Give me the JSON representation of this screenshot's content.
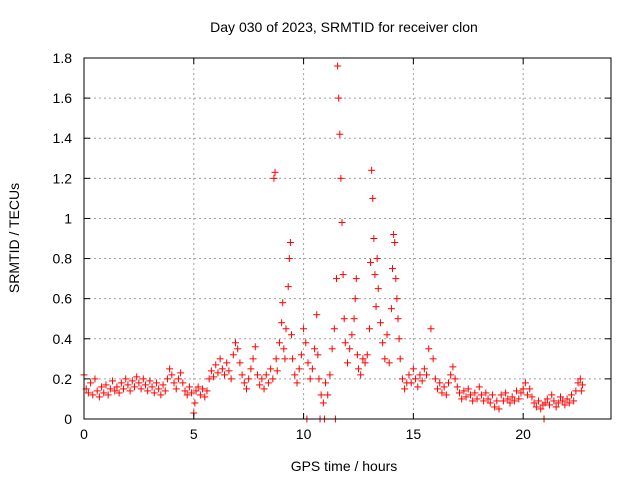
{
  "chart_data": {
    "type": "scatter",
    "title": "Day 030 of 2023, SRMTID for receiver clon",
    "xlabel": "GPS time / hours",
    "ylabel": "SRMTID / TECUs",
    "xlim": [
      0,
      24
    ],
    "ylim": [
      0,
      1.8
    ],
    "xticks": [
      0,
      5,
      10,
      15,
      20
    ],
    "xtick_labels": [
      "0",
      "5",
      "10",
      "15",
      "20"
    ],
    "yticks": [
      0,
      0.2,
      0.4,
      0.6,
      0.8,
      1.0,
      1.2,
      1.4,
      1.6,
      1.8
    ],
    "ytick_labels": [
      "0",
      "0.2",
      "0.4",
      "0.6",
      "0.8",
      "1",
      "1.2",
      "1.4",
      "1.6",
      "1.8"
    ],
    "grid": true,
    "marker": "+",
    "color": "#ff0000",
    "series": [
      {
        "name": "SRMTID",
        "points": [
          [
            0.0,
            0.22
          ],
          [
            0.1,
            0.15
          ],
          [
            0.2,
            0.13
          ],
          [
            0.3,
            0.18
          ],
          [
            0.4,
            0.12
          ],
          [
            0.5,
            0.2
          ],
          [
            0.6,
            0.14
          ],
          [
            0.7,
            0.11
          ],
          [
            0.8,
            0.16
          ],
          [
            0.9,
            0.13
          ],
          [
            1.0,
            0.17
          ],
          [
            1.1,
            0.12
          ],
          [
            1.2,
            0.15
          ],
          [
            1.3,
            0.19
          ],
          [
            1.4,
            0.14
          ],
          [
            1.5,
            0.16
          ],
          [
            1.6,
            0.13
          ],
          [
            1.7,
            0.18
          ],
          [
            1.8,
            0.15
          ],
          [
            1.9,
            0.2
          ],
          [
            2.0,
            0.17
          ],
          [
            2.1,
            0.14
          ],
          [
            2.2,
            0.19
          ],
          [
            2.3,
            0.16
          ],
          [
            2.4,
            0.21
          ],
          [
            2.5,
            0.18
          ],
          [
            2.6,
            0.15
          ],
          [
            2.7,
            0.2
          ],
          [
            2.8,
            0.17
          ],
          [
            2.9,
            0.14
          ],
          [
            3.0,
            0.19
          ],
          [
            3.1,
            0.16
          ],
          [
            3.2,
            0.13
          ],
          [
            3.3,
            0.18
          ],
          [
            3.4,
            0.15
          ],
          [
            3.5,
            0.12
          ],
          [
            3.6,
            0.17
          ],
          [
            3.7,
            0.14
          ],
          [
            3.8,
            0.2
          ],
          [
            3.9,
            0.25
          ],
          [
            4.0,
            0.22
          ],
          [
            4.1,
            0.18
          ],
          [
            4.2,
            0.15
          ],
          [
            4.3,
            0.2
          ],
          [
            4.4,
            0.23
          ],
          [
            4.5,
            0.18
          ],
          [
            4.6,
            0.14
          ],
          [
            4.7,
            0.12
          ],
          [
            4.8,
            0.16
          ],
          [
            4.9,
            0.13
          ],
          [
            5.0,
            0.03
          ],
          [
            5.05,
            0.08
          ],
          [
            5.1,
            0.14
          ],
          [
            5.2,
            0.16
          ],
          [
            5.3,
            0.12
          ],
          [
            5.4,
            0.15
          ],
          [
            5.5,
            0.11
          ],
          [
            5.6,
            0.14
          ],
          [
            5.7,
            0.2
          ],
          [
            5.8,
            0.24
          ],
          [
            5.9,
            0.21
          ],
          [
            6.0,
            0.27
          ],
          [
            6.1,
            0.23
          ],
          [
            6.2,
            0.3
          ],
          [
            6.3,
            0.25
          ],
          [
            6.4,
            0.22
          ],
          [
            6.5,
            0.28
          ],
          [
            6.6,
            0.24
          ],
          [
            6.7,
            0.2
          ],
          [
            6.8,
            0.32
          ],
          [
            6.9,
            0.38
          ],
          [
            7.0,
            0.35
          ],
          [
            7.1,
            0.28
          ],
          [
            7.2,
            0.22
          ],
          [
            7.3,
            0.18
          ],
          [
            7.4,
            0.15
          ],
          [
            7.5,
            0.2
          ],
          [
            7.6,
            0.25
          ],
          [
            7.7,
            0.3
          ],
          [
            7.8,
            0.36
          ],
          [
            7.9,
            0.22
          ],
          [
            8.0,
            0.17
          ],
          [
            8.1,
            0.2
          ],
          [
            8.2,
            0.15
          ],
          [
            8.3,
            0.22
          ],
          [
            8.4,
            0.18
          ],
          [
            8.5,
            0.25
          ],
          [
            8.6,
            0.2
          ],
          [
            8.65,
            1.2
          ],
          [
            8.7,
            1.23
          ],
          [
            8.75,
            0.3
          ],
          [
            8.8,
            0.24
          ],
          [
            8.9,
            0.38
          ],
          [
            9.0,
            0.48
          ],
          [
            9.05,
            0.58
          ],
          [
            9.1,
            0.35
          ],
          [
            9.15,
            0.3
          ],
          [
            9.2,
            0.45
          ],
          [
            9.3,
            0.66
          ],
          [
            9.35,
            0.8
          ],
          [
            9.4,
            0.88
          ],
          [
            9.45,
            0.42
          ],
          [
            9.5,
            0.3
          ],
          [
            9.6,
            0.22
          ],
          [
            9.7,
            0.18
          ],
          [
            9.8,
            0.25
          ],
          [
            9.9,
            0.32
          ],
          [
            10.0,
            0.45
          ],
          [
            10.1,
            0.38
          ],
          [
            10.15,
            0.0
          ],
          [
            10.2,
            0.28
          ],
          [
            10.3,
            0.2
          ],
          [
            10.4,
            0.25
          ],
          [
            10.5,
            0.35
          ],
          [
            10.6,
            0.52
          ],
          [
            10.65,
            0.32
          ],
          [
            10.7,
            0.2
          ],
          [
            10.75,
            0.0
          ],
          [
            10.8,
            0.12
          ],
          [
            10.9,
            0.08
          ],
          [
            10.95,
            0.0
          ],
          [
            11.0,
            0.18
          ],
          [
            11.1,
            0.12
          ],
          [
            11.2,
            0.22
          ],
          [
            11.3,
            0.35
          ],
          [
            11.4,
            0.45
          ],
          [
            11.45,
            0.0
          ],
          [
            11.5,
            0.7
          ],
          [
            11.55,
            1.76
          ],
          [
            11.6,
            1.6
          ],
          [
            11.65,
            1.42
          ],
          [
            11.7,
            1.2
          ],
          [
            11.75,
            0.98
          ],
          [
            11.8,
            0.72
          ],
          [
            11.85,
            0.5
          ],
          [
            11.9,
            0.38
          ],
          [
            12.0,
            0.28
          ],
          [
            12.1,
            0.35
          ],
          [
            12.2,
            0.42
          ],
          [
            12.3,
            0.5
          ],
          [
            12.35,
            0.6
          ],
          [
            12.4,
            0.7
          ],
          [
            12.45,
            0.32
          ],
          [
            12.5,
            0.25
          ],
          [
            12.6,
            0.22
          ],
          [
            12.7,
            0.3
          ],
          [
            12.8,
            0.28
          ],
          [
            12.9,
            0.32
          ],
          [
            13.0,
            0.45
          ],
          [
            13.05,
            0.78
          ],
          [
            13.1,
            1.24
          ],
          [
            13.15,
            1.1
          ],
          [
            13.2,
            0.9
          ],
          [
            13.25,
            0.72
          ],
          [
            13.3,
            0.56
          ],
          [
            13.35,
            0.8
          ],
          [
            13.4,
            0.65
          ],
          [
            13.5,
            0.48
          ],
          [
            13.6,
            0.38
          ],
          [
            13.7,
            0.3
          ],
          [
            13.8,
            0.42
          ],
          [
            13.9,
            0.28
          ],
          [
            14.0,
            0.55
          ],
          [
            14.05,
            0.75
          ],
          [
            14.1,
            0.92
          ],
          [
            14.15,
            0.88
          ],
          [
            14.2,
            0.7
          ],
          [
            14.25,
            0.6
          ],
          [
            14.3,
            0.5
          ],
          [
            14.35,
            0.4
          ],
          [
            14.4,
            0.3
          ],
          [
            14.5,
            0.2
          ],
          [
            14.6,
            0.15
          ],
          [
            14.7,
            0.18
          ],
          [
            14.8,
            0.22
          ],
          [
            14.9,
            0.18
          ],
          [
            15.0,
            0.25
          ],
          [
            15.1,
            0.2
          ],
          [
            15.2,
            0.16
          ],
          [
            15.3,
            0.22
          ],
          [
            15.4,
            0.19
          ],
          [
            15.5,
            0.25
          ],
          [
            15.6,
            0.22
          ],
          [
            15.7,
            0.35
          ],
          [
            15.8,
            0.45
          ],
          [
            15.9,
            0.3
          ],
          [
            16.0,
            0.2
          ],
          [
            16.1,
            0.15
          ],
          [
            16.2,
            0.18
          ],
          [
            16.3,
            0.13
          ],
          [
            16.4,
            0.16
          ],
          [
            16.5,
            0.12
          ],
          [
            16.6,
            0.18
          ],
          [
            16.7,
            0.22
          ],
          [
            16.8,
            0.26
          ],
          [
            16.9,
            0.2
          ],
          [
            17.0,
            0.16
          ],
          [
            17.1,
            0.13
          ],
          [
            17.2,
            0.1
          ],
          [
            17.3,
            0.14
          ],
          [
            17.4,
            0.11
          ],
          [
            17.5,
            0.15
          ],
          [
            17.6,
            0.12
          ],
          [
            17.7,
            0.09
          ],
          [
            17.8,
            0.13
          ],
          [
            17.9,
            0.1
          ],
          [
            18.0,
            0.16
          ],
          [
            18.1,
            0.12
          ],
          [
            18.2,
            0.09
          ],
          [
            18.3,
            0.13
          ],
          [
            18.4,
            0.1
          ],
          [
            18.5,
            0.08
          ],
          [
            18.6,
            0.12
          ],
          [
            18.7,
            0.06
          ],
          [
            18.8,
            0.09
          ],
          [
            18.9,
            0.05
          ],
          [
            19.0,
            0.12
          ],
          [
            19.1,
            0.09
          ],
          [
            19.2,
            0.13
          ],
          [
            19.3,
            0.1
          ],
          [
            19.4,
            0.08
          ],
          [
            19.5,
            0.11
          ],
          [
            19.6,
            0.09
          ],
          [
            19.7,
            0.14
          ],
          [
            19.8,
            0.1
          ],
          [
            19.9,
            0.13
          ],
          [
            20.0,
            0.15
          ],
          [
            20.1,
            0.18
          ],
          [
            20.2,
            0.12
          ],
          [
            20.3,
            0.15
          ],
          [
            20.4,
            0.11
          ],
          [
            20.5,
            0.08
          ],
          [
            20.6,
            0.06
          ],
          [
            20.7,
            0.09
          ],
          [
            20.8,
            0.05
          ],
          [
            20.9,
            0.07
          ],
          [
            20.95,
            0.0
          ],
          [
            21.0,
            0.08
          ],
          [
            21.1,
            0.1
          ],
          [
            21.2,
            0.07
          ],
          [
            21.3,
            0.12
          ],
          [
            21.4,
            0.09
          ],
          [
            21.5,
            0.06
          ],
          [
            21.6,
            0.08
          ],
          [
            21.7,
            0.11
          ],
          [
            21.8,
            0.09
          ],
          [
            21.9,
            0.07
          ],
          [
            22.0,
            0.1
          ],
          [
            22.1,
            0.08
          ],
          [
            22.2,
            0.12
          ],
          [
            22.3,
            0.09
          ],
          [
            22.4,
            0.14
          ],
          [
            22.5,
            0.18
          ],
          [
            22.6,
            0.2
          ],
          [
            22.65,
            0.14
          ],
          [
            22.7,
            0.17
          ]
        ]
      }
    ]
  }
}
